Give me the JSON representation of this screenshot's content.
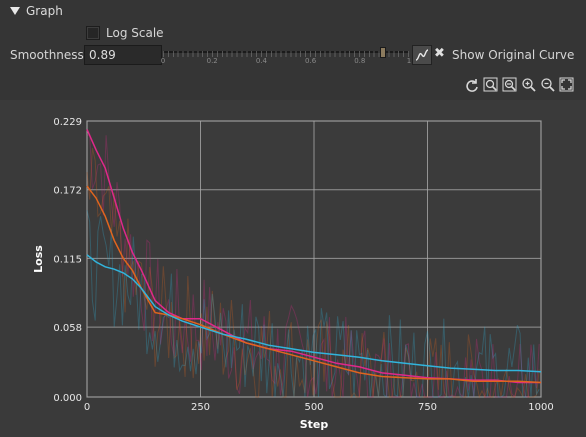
{
  "section": {
    "title": "Graph"
  },
  "log_scale": {
    "label": "Log Scale",
    "checked": false
  },
  "smoothness": {
    "label": "Smoothness",
    "value": "0.89",
    "slider_value": 0.89,
    "slider_labels": [
      "0",
      "0.2",
      "0.4",
      "0.6",
      "0.8",
      "1"
    ]
  },
  "show_original": {
    "label": "Show Original Curve",
    "x_mark": "✖"
  },
  "toolbar": {
    "icons": [
      "refresh-icon",
      "zoom-fit-icon",
      "zoom-out-icon",
      "zoom-in-icon",
      "zoom-reset-icon",
      "fullscreen-icon"
    ]
  },
  "chart_data": {
    "type": "line",
    "xlabel": "Step",
    "ylabel": "Loss",
    "xlim": [
      0,
      1000
    ],
    "ylim": [
      0,
      0.229
    ],
    "xticks": [
      "0",
      "250",
      "500",
      "750",
      "1000"
    ],
    "yticks": [
      "0.000",
      "0.058",
      "0.115",
      "0.172",
      "0.229"
    ],
    "grid": true,
    "series": [
      {
        "color": "#e0288a",
        "x": [
          0,
          20,
          40,
          60,
          80,
          100,
          120,
          150,
          180,
          210,
          250,
          300,
          350,
          400,
          450,
          500,
          550,
          600,
          650,
          700,
          750,
          800,
          850,
          900,
          950,
          1000
        ],
        "y": [
          0.222,
          0.205,
          0.19,
          0.165,
          0.14,
          0.12,
          0.105,
          0.08,
          0.07,
          0.065,
          0.065,
          0.055,
          0.045,
          0.04,
          0.038,
          0.033,
          0.028,
          0.025,
          0.02,
          0.018,
          0.016,
          0.015,
          0.014,
          0.014,
          0.012,
          0.012
        ]
      },
      {
        "color": "#e0651e",
        "x": [
          0,
          20,
          40,
          60,
          80,
          100,
          120,
          150,
          180,
          210,
          250,
          300,
          350,
          400,
          450,
          500,
          550,
          600,
          650,
          700,
          750,
          800,
          850,
          900,
          950,
          1000
        ],
        "y": [
          0.175,
          0.165,
          0.15,
          0.13,
          0.115,
          0.105,
          0.09,
          0.07,
          0.068,
          0.065,
          0.06,
          0.052,
          0.045,
          0.04,
          0.035,
          0.03,
          0.025,
          0.02,
          0.017,
          0.016,
          0.015,
          0.015,
          0.013,
          0.013,
          0.013,
          0.012
        ]
      },
      {
        "color": "#32b4dc",
        "x": [
          0,
          20,
          40,
          60,
          80,
          100,
          120,
          150,
          180,
          210,
          250,
          300,
          350,
          400,
          450,
          500,
          550,
          600,
          650,
          700,
          750,
          800,
          850,
          900,
          950,
          1000
        ],
        "y": [
          0.118,
          0.112,
          0.108,
          0.106,
          0.103,
          0.098,
          0.09,
          0.075,
          0.068,
          0.063,
          0.058,
          0.052,
          0.048,
          0.043,
          0.04,
          0.037,
          0.035,
          0.033,
          0.03,
          0.028,
          0.026,
          0.024,
          0.023,
          0.022,
          0.022,
          0.021
        ]
      }
    ]
  }
}
